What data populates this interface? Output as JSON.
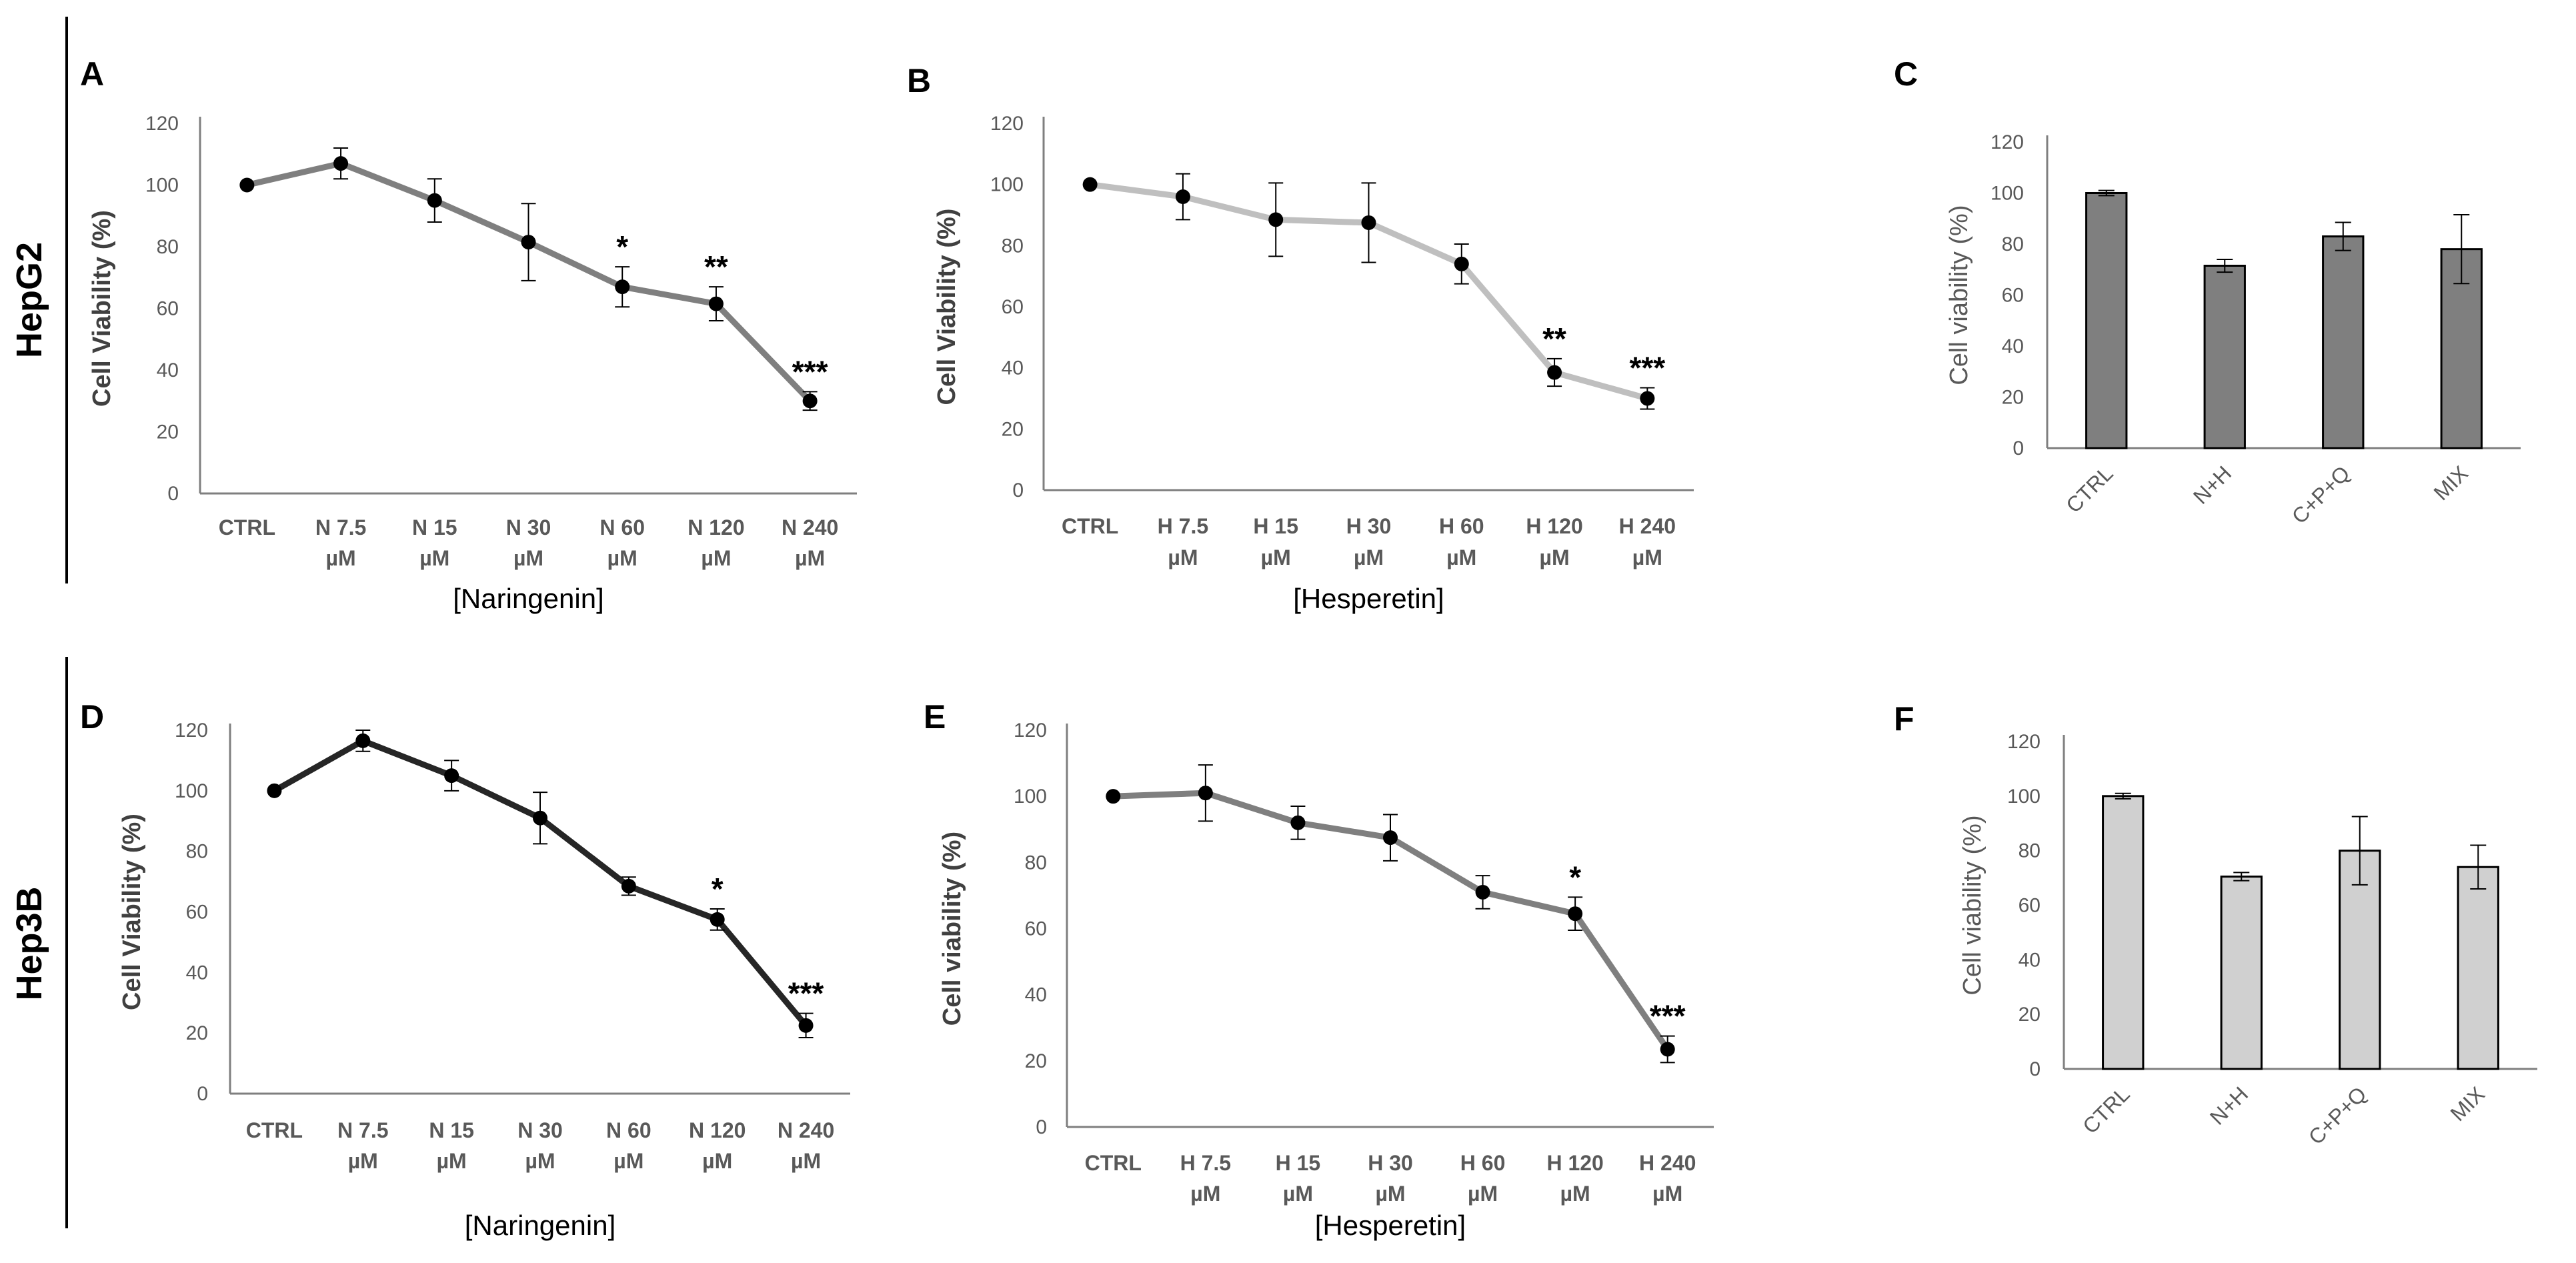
{
  "row_labels": [
    "HepG2",
    "Hep3B"
  ],
  "colors": {
    "axis": "#7f7f7f",
    "text": "#595959",
    "marker": "#000000",
    "line_A": "#7f7f7f",
    "line_B": "#bfbfbf",
    "line_D": "#262626",
    "line_E": "#7f7f7f",
    "bar_C": "#7f7f7f",
    "bar_F": "#d0d0d0"
  },
  "chart_data": [
    {
      "id": "A",
      "panel_label": "A",
      "type": "line",
      "ylabel": "Cell Viability (%)",
      "xlabel": "[Naringenin]",
      "ylim": [
        0,
        120
      ],
      "yticks": [
        0,
        20,
        40,
        60,
        80,
        100,
        120
      ],
      "categories": [
        [
          "CTRL"
        ],
        [
          "N 7.5",
          "µM"
        ],
        [
          "N 15",
          "µM"
        ],
        [
          "N 30",
          "µM"
        ],
        [
          "N 60",
          "µM"
        ],
        [
          "N 120",
          "µM"
        ],
        [
          "N 240",
          "µM"
        ]
      ],
      "values": [
        100,
        107,
        95,
        81.5,
        67,
        61.5,
        30
      ],
      "errors": [
        1,
        5,
        7,
        12.5,
        6.5,
        5.5,
        3
      ],
      "significance": [
        "",
        "",
        "",
        "",
        "*",
        "**",
        "***"
      ]
    },
    {
      "id": "B",
      "panel_label": "B",
      "type": "line",
      "ylabel": "Cell Viability (%)",
      "xlabel": "[Hesperetin]",
      "ylim": [
        0,
        120
      ],
      "yticks": [
        0,
        20,
        40,
        60,
        80,
        100,
        120
      ],
      "categories": [
        [
          "CTRL"
        ],
        [
          "H 7.5",
          "µM"
        ],
        [
          "H 15",
          "µM"
        ],
        [
          "H 30",
          "µM"
        ],
        [
          "H 60",
          "µM"
        ],
        [
          "H 120",
          "µM"
        ],
        [
          "H 240",
          "µM"
        ]
      ],
      "values": [
        100,
        96,
        88.5,
        87.5,
        74,
        38.5,
        30
      ],
      "errors": [
        1,
        7.5,
        12,
        13,
        6.5,
        4.5,
        3.5
      ],
      "significance": [
        "",
        "",
        "",
        "",
        "",
        "**",
        "***"
      ]
    },
    {
      "id": "C",
      "panel_label": "C",
      "type": "bar",
      "ylabel": "Cell viability (%)",
      "xlabel": "",
      "ylim": [
        0,
        120
      ],
      "yticks": [
        0,
        20,
        40,
        60,
        80,
        100,
        120
      ],
      "categories": [
        "CTRL",
        "N+H",
        "C+P+Q",
        "MIX"
      ],
      "values": [
        100,
        71.5,
        83,
        78
      ],
      "errors": [
        1,
        2.5,
        5.5,
        13.5
      ]
    },
    {
      "id": "D",
      "panel_label": "D",
      "type": "line",
      "ylabel": "Cell Viability (%)",
      "xlabel": "[Naringenin]",
      "ylim": [
        0,
        120
      ],
      "yticks": [
        0,
        20,
        40,
        60,
        80,
        100,
        120
      ],
      "categories": [
        [
          "CTRL"
        ],
        [
          "N 7.5",
          "µM"
        ],
        [
          "N 15",
          "µM"
        ],
        [
          "N 30",
          "µM"
        ],
        [
          "N 60",
          "µM"
        ],
        [
          "N 120",
          "µM"
        ],
        [
          "N 240",
          "µM"
        ]
      ],
      "values": [
        100,
        116.5,
        105,
        91,
        68.5,
        57.5,
        22.5
      ],
      "errors": [
        1,
        3.5,
        5,
        8.5,
        3,
        3.5,
        4
      ],
      "significance": [
        "",
        "",
        "",
        "",
        "",
        "*",
        "***"
      ]
    },
    {
      "id": "E",
      "panel_label": "E",
      "type": "line",
      "ylabel": "Cell viability (%)",
      "xlabel": "[Hesperetin]",
      "ylim": [
        0,
        120
      ],
      "yticks": [
        0,
        20,
        40,
        60,
        80,
        100,
        120
      ],
      "categories": [
        [
          "CTRL"
        ],
        [
          "H 7.5",
          "µM"
        ],
        [
          "H 15",
          "µM"
        ],
        [
          "H 30",
          "µM"
        ],
        [
          "H 60",
          "µM"
        ],
        [
          "H 120",
          "µM"
        ],
        [
          "H 240",
          "µM"
        ]
      ],
      "values": [
        100,
        101,
        92,
        87.5,
        71,
        64.5,
        23.5
      ],
      "errors": [
        1,
        8.5,
        5,
        7,
        5,
        5,
        4
      ],
      "significance": [
        "",
        "",
        "",
        "",
        "",
        "*",
        "***"
      ]
    },
    {
      "id": "F",
      "panel_label": "F",
      "type": "bar",
      "ylabel": "Cell viability (%)",
      "xlabel": "",
      "ylim": [
        0,
        120
      ],
      "yticks": [
        0,
        20,
        40,
        60,
        80,
        100,
        120
      ],
      "categories": [
        "CTRL",
        "N+H",
        "C+P+Q",
        "MIX"
      ],
      "values": [
        100,
        70.5,
        80,
        74
      ],
      "errors": [
        1,
        1.5,
        12.5,
        8
      ]
    }
  ]
}
